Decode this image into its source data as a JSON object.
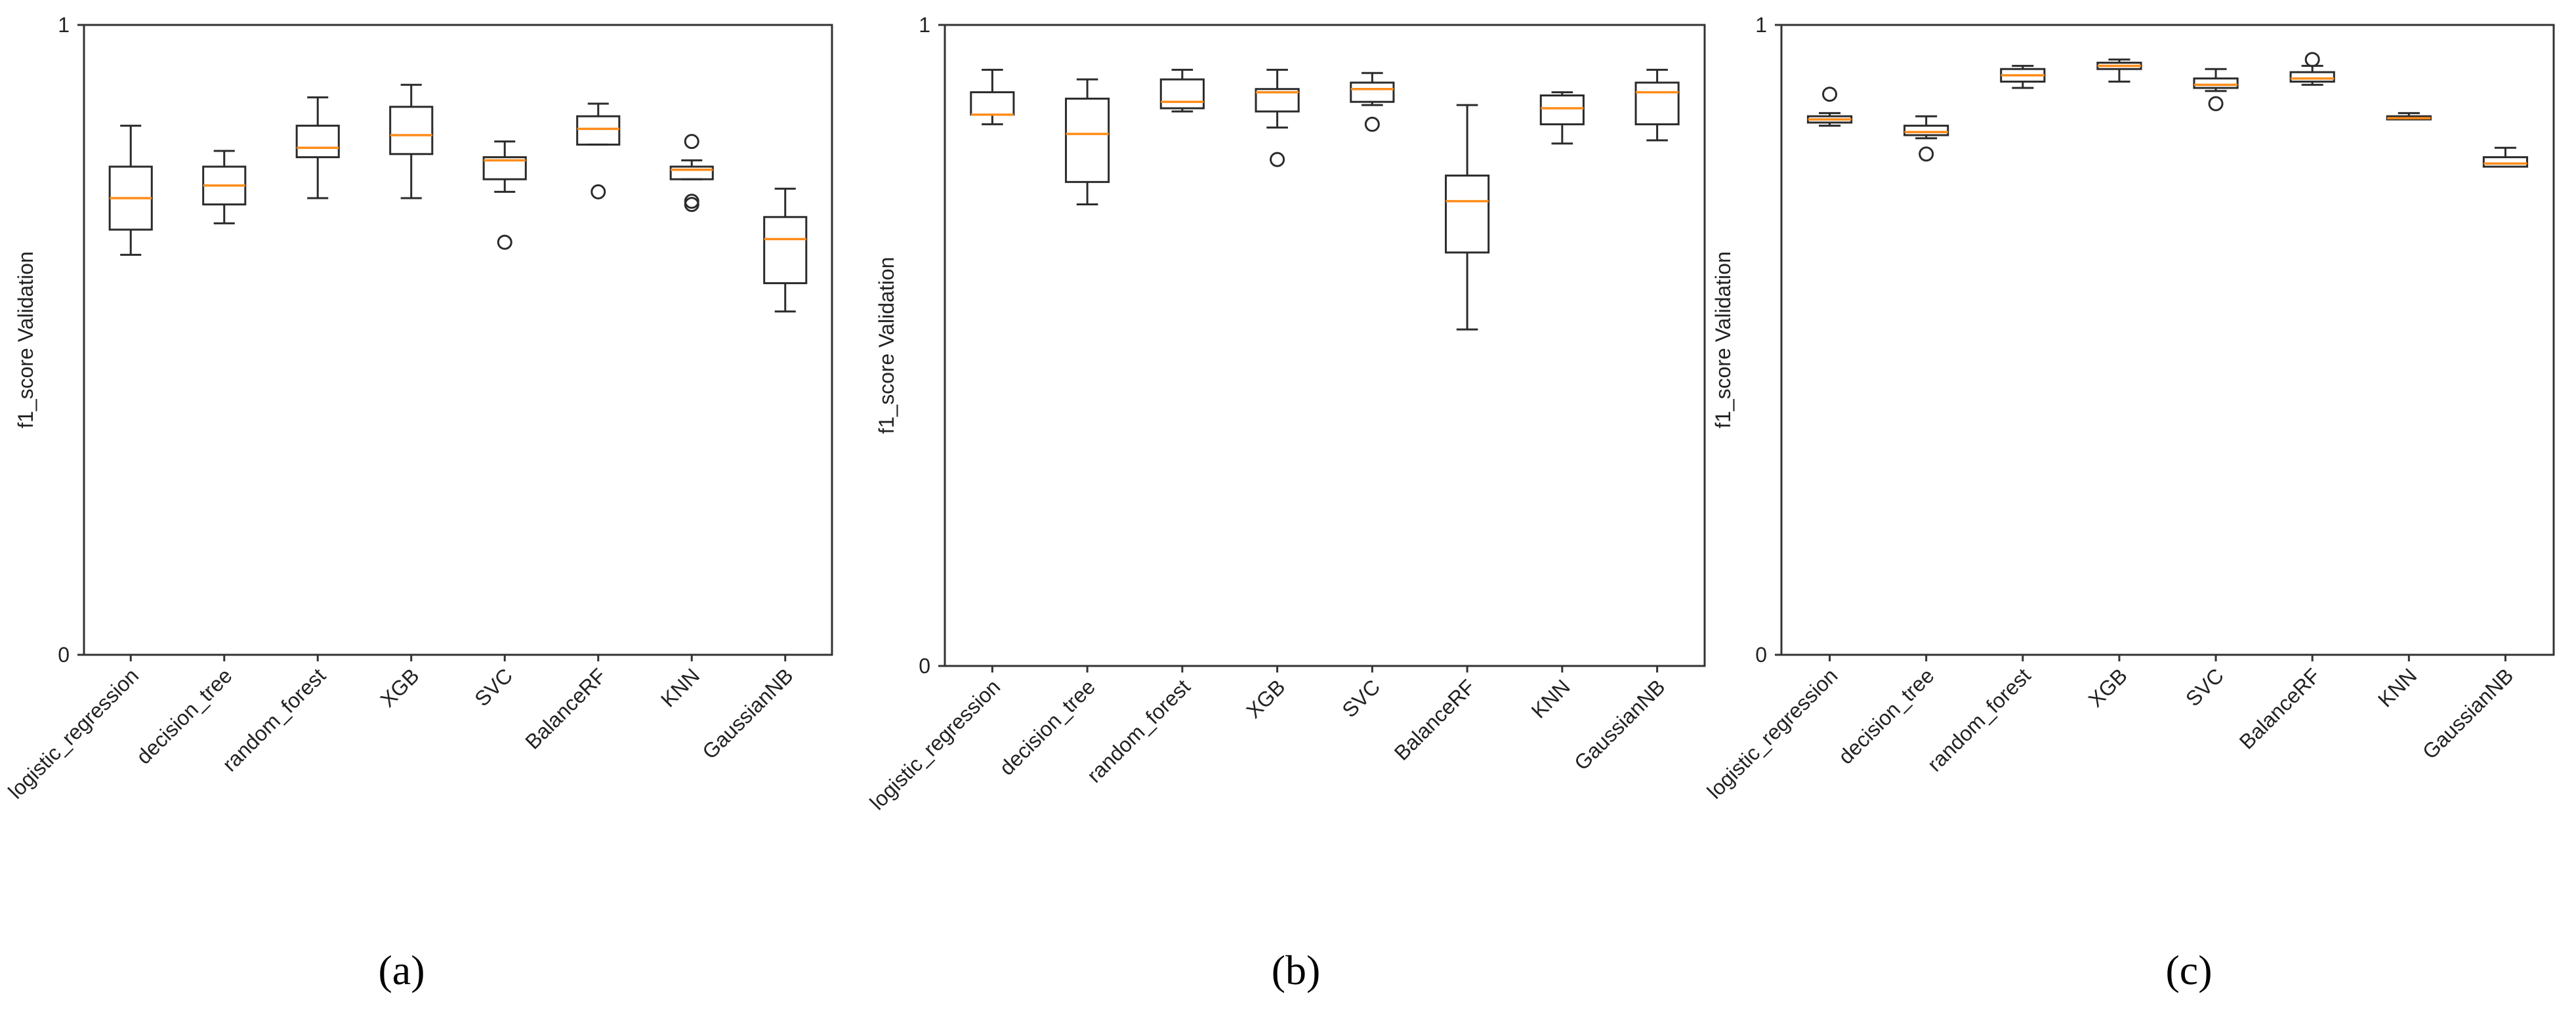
{
  "chart_data": [
    {
      "type": "box",
      "panel": "a",
      "ylabel": "f1_score Validation",
      "ylim": [
        0,
        1
      ],
      "yticks": [
        "0",
        "1"
      ],
      "categories": [
        "logistic_regression",
        "decision_tree",
        "random_forest",
        "XGB",
        "SVC",
        "BalanceRF",
        "KNN",
        "GaussianNB"
      ],
      "boxes": [
        {
          "whislo": 0.635,
          "q1": 0.675,
          "med": 0.725,
          "q3": 0.775,
          "whishi": 0.84,
          "fliers": []
        },
        {
          "whislo": 0.685,
          "q1": 0.715,
          "med": 0.745,
          "q3": 0.775,
          "whishi": 0.8,
          "fliers": []
        },
        {
          "whislo": 0.725,
          "q1": 0.79,
          "med": 0.805,
          "q3": 0.84,
          "whishi": 0.885,
          "fliers": []
        },
        {
          "whislo": 0.725,
          "q1": 0.795,
          "med": 0.825,
          "q3": 0.87,
          "whishi": 0.905,
          "fliers": []
        },
        {
          "whislo": 0.735,
          "q1": 0.755,
          "med": 0.785,
          "q3": 0.79,
          "whishi": 0.815,
          "fliers": [
            0.655
          ]
        },
        {
          "whislo": 0.81,
          "q1": 0.81,
          "med": 0.835,
          "q3": 0.855,
          "whishi": 0.875,
          "fliers": [
            0.735
          ]
        },
        {
          "whislo": 0.755,
          "q1": 0.755,
          "med": 0.77,
          "q3": 0.775,
          "whishi": 0.785,
          "fliers": [
            0.815,
            0.72,
            0.715
          ]
        },
        {
          "whislo": 0.545,
          "q1": 0.59,
          "med": 0.66,
          "q3": 0.695,
          "whishi": 0.74,
          "fliers": []
        }
      ]
    },
    {
      "type": "box",
      "panel": "b",
      "ylabel": "f1_score Validation",
      "ylim": [
        0,
        1
      ],
      "yticks": [
        "0",
        "1"
      ],
      "categories": [
        "logistic_regression",
        "decision_tree",
        "random_forest",
        "XGB",
        "SVC",
        "BalanceRF",
        "KNN",
        "GaussianNB"
      ],
      "boxes": [
        {
          "whislo": 0.845,
          "q1": 0.86,
          "med": 0.86,
          "q3": 0.895,
          "whishi": 0.93,
          "fliers": []
        },
        {
          "whislo": 0.72,
          "q1": 0.755,
          "med": 0.83,
          "q3": 0.885,
          "whishi": 0.915,
          "fliers": []
        },
        {
          "whislo": 0.865,
          "q1": 0.87,
          "med": 0.88,
          "q3": 0.915,
          "whishi": 0.93,
          "fliers": []
        },
        {
          "whislo": 0.84,
          "q1": 0.865,
          "med": 0.895,
          "q3": 0.9,
          "whishi": 0.93,
          "fliers": [
            0.79
          ]
        },
        {
          "whislo": 0.875,
          "q1": 0.88,
          "med": 0.9,
          "q3": 0.91,
          "whishi": 0.925,
          "fliers": [
            0.845
          ]
        },
        {
          "whislo": 0.525,
          "q1": 0.645,
          "med": 0.725,
          "q3": 0.765,
          "whishi": 0.875,
          "fliers": []
        },
        {
          "whislo": 0.815,
          "q1": 0.845,
          "med": 0.87,
          "q3": 0.89,
          "whishi": 0.895,
          "fliers": []
        },
        {
          "whislo": 0.82,
          "q1": 0.845,
          "med": 0.895,
          "q3": 0.91,
          "whishi": 0.93,
          "fliers": []
        }
      ]
    },
    {
      "type": "box",
      "panel": "c",
      "ylabel": "f1_score Validation",
      "ylim": [
        0,
        1
      ],
      "yticks": [
        "0",
        "1"
      ],
      "categories": [
        "logistic_regression",
        "decision_tree",
        "random_forest",
        "XGB",
        "SVC",
        "BalanceRF",
        "KNN",
        "GaussianNB"
      ],
      "boxes": [
        {
          "whislo": 0.84,
          "q1": 0.845,
          "med": 0.85,
          "q3": 0.855,
          "whishi": 0.86,
          "fliers": [
            0.89
          ]
        },
        {
          "whislo": 0.82,
          "q1": 0.825,
          "med": 0.83,
          "q3": 0.84,
          "whishi": 0.855,
          "fliers": [
            0.795
          ]
        },
        {
          "whislo": 0.9,
          "q1": 0.91,
          "med": 0.92,
          "q3": 0.93,
          "whishi": 0.935,
          "fliers": []
        },
        {
          "whislo": 0.91,
          "q1": 0.93,
          "med": 0.935,
          "q3": 0.94,
          "whishi": 0.945,
          "fliers": []
        },
        {
          "whislo": 0.895,
          "q1": 0.9,
          "med": 0.905,
          "q3": 0.915,
          "whishi": 0.93,
          "fliers": [
            0.875
          ]
        },
        {
          "whislo": 0.905,
          "q1": 0.91,
          "med": 0.915,
          "q3": 0.925,
          "whishi": 0.935,
          "fliers": [
            0.945
          ]
        },
        {
          "whislo": 0.85,
          "q1": 0.85,
          "med": 0.852,
          "q3": 0.855,
          "whishi": 0.86,
          "fliers": []
        },
        {
          "whislo": 0.775,
          "q1": 0.775,
          "med": 0.78,
          "q3": 0.79,
          "whishi": 0.805,
          "fliers": []
        }
      ]
    }
  ],
  "panel_labels": [
    "(a)",
    "(b)",
    "(c)"
  ],
  "colors": {
    "median": "#ff8c1a",
    "box": "#2b2b2b",
    "axis": "#333333"
  }
}
